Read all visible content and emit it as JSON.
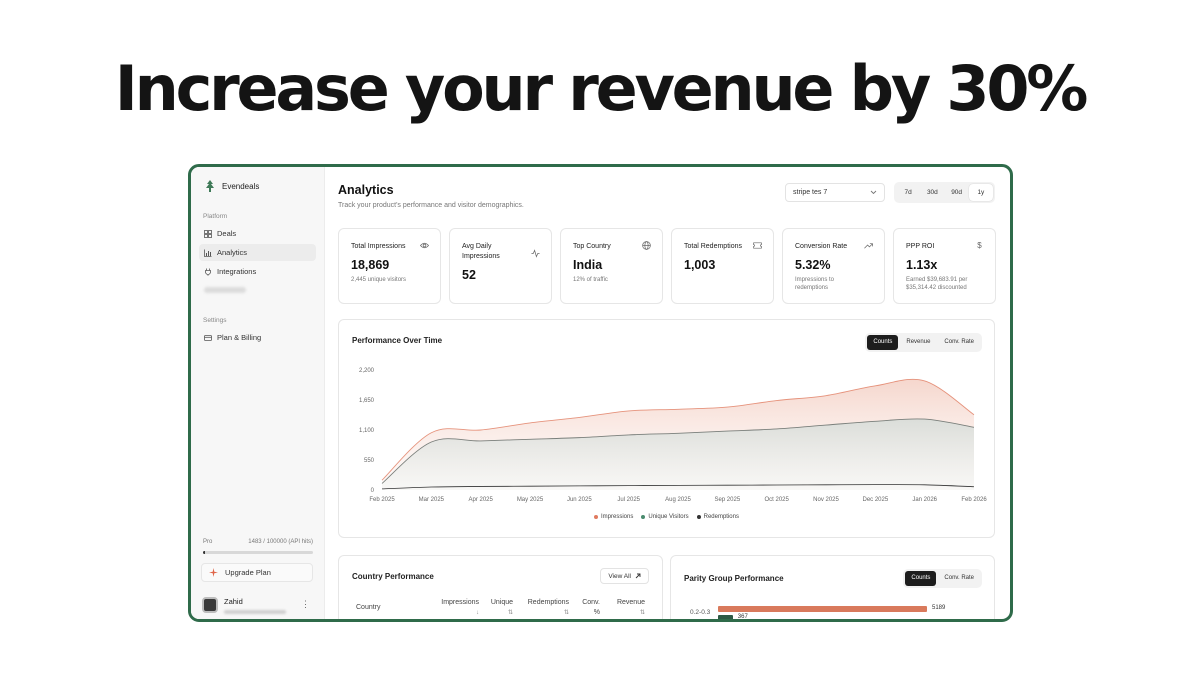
{
  "headline": "Increase your revenue by 30%",
  "colors": {
    "frame": "#2f6b4a",
    "impressions": "#e07a5f",
    "unique_visitors": "#4a8b6e",
    "redemptions": "#333333"
  },
  "sidebar": {
    "brand": "Evendeals",
    "platform_label": "Platform",
    "items": [
      {
        "label": "Deals",
        "icon": "grid-icon"
      },
      {
        "label": "Analytics",
        "icon": "bar-chart-icon",
        "active": true
      },
      {
        "label": "Integrations",
        "icon": "plug-icon"
      }
    ],
    "settings_label": "Settings",
    "settings_items": [
      {
        "label": "Plan & Billing",
        "icon": "credit-card-icon"
      }
    ],
    "plan": {
      "name": "Pro",
      "usage_text": "1483 / 100000 (API hits)",
      "used": 1483,
      "limit": 100000
    },
    "upgrade_label": "Upgrade Plan",
    "user": {
      "name": "Zahid"
    }
  },
  "header": {
    "title": "Analytics",
    "subtitle": "Track your product's performance and visitor demographics.",
    "product_select": "stripe tes 7",
    "ranges": [
      "7d",
      "30d",
      "90d",
      "1y"
    ],
    "active_range": "1y"
  },
  "stats": [
    {
      "label": "Total Impressions",
      "value": "18,869",
      "sub": "2,445 unique visitors",
      "icon": "eye-icon"
    },
    {
      "label": "Avg Daily Impressions",
      "value": "52",
      "sub": "",
      "icon": "activity-icon"
    },
    {
      "label": "Top Country",
      "value": "India",
      "sub": "12% of traffic",
      "icon": "globe-icon"
    },
    {
      "label": "Total Redemptions",
      "value": "1,003",
      "sub": "",
      "icon": "ticket-icon"
    },
    {
      "label": "Conversion Rate",
      "value": "5.32%",
      "sub": "Impressions to redemptions",
      "icon": "trending-up-icon"
    },
    {
      "label": "PPP ROI",
      "value": "1.13x",
      "sub": "Earned $39,683.91 per $35,314.42 discounted",
      "icon": "dollar-icon"
    }
  ],
  "performance": {
    "title": "Performance Over Time",
    "toggles": [
      "Counts",
      "Revenue",
      "Conv. Rate"
    ],
    "active_toggle": "Counts",
    "legend": [
      "Impressions",
      "Unique Visitors",
      "Redemptions"
    ]
  },
  "chart_data": {
    "type": "area",
    "x": [
      "Feb 2025",
      "Mar 2025",
      "Apr 2025",
      "May 2025",
      "Jun 2025",
      "Jul 2025",
      "Aug 2025",
      "Sep 2025",
      "Oct 2025",
      "Nov 2025",
      "Dec 2025",
      "Jan 2026",
      "Feb 2026"
    ],
    "yticks": [
      0,
      550,
      1100,
      1650,
      2200
    ],
    "ylim": [
      0,
      2200
    ],
    "series": [
      {
        "name": "Impressions",
        "values": [
          180,
          1050,
          1100,
          1230,
          1330,
          1450,
          1480,
          1520,
          1640,
          1730,
          1910,
          2000,
          1380
        ]
      },
      {
        "name": "Unique Visitors",
        "values": [
          120,
          880,
          900,
          930,
          960,
          1010,
          1040,
          1080,
          1120,
          1190,
          1260,
          1300,
          1150
        ]
      },
      {
        "name": "Redemptions",
        "values": [
          20,
          55,
          65,
          70,
          75,
          80,
          85,
          88,
          92,
          95,
          98,
          95,
          60
        ]
      }
    ],
    "grid": false,
    "legend_position": "bottom"
  },
  "country": {
    "title": "Country Performance",
    "view_all": "View All",
    "columns": [
      {
        "label": "Country",
        "sort": ""
      },
      {
        "label": "Impressions",
        "sort": "↓"
      },
      {
        "label": "Unique",
        "sort": "⇅"
      },
      {
        "label": "Redemptions",
        "sort": "⇅"
      },
      {
        "label": "Conv. %",
        "sort": "⇅"
      },
      {
        "label": "Revenue",
        "sort": "⇅"
      }
    ]
  },
  "parity": {
    "title": "Parity Group Performance",
    "toggles": [
      "Counts",
      "Conv. Rate"
    ],
    "active_toggle": "Counts",
    "rows": [
      {
        "group": "0.2-0.3",
        "impressions": 5189,
        "redemptions": 367
      }
    ],
    "max": 5189
  }
}
